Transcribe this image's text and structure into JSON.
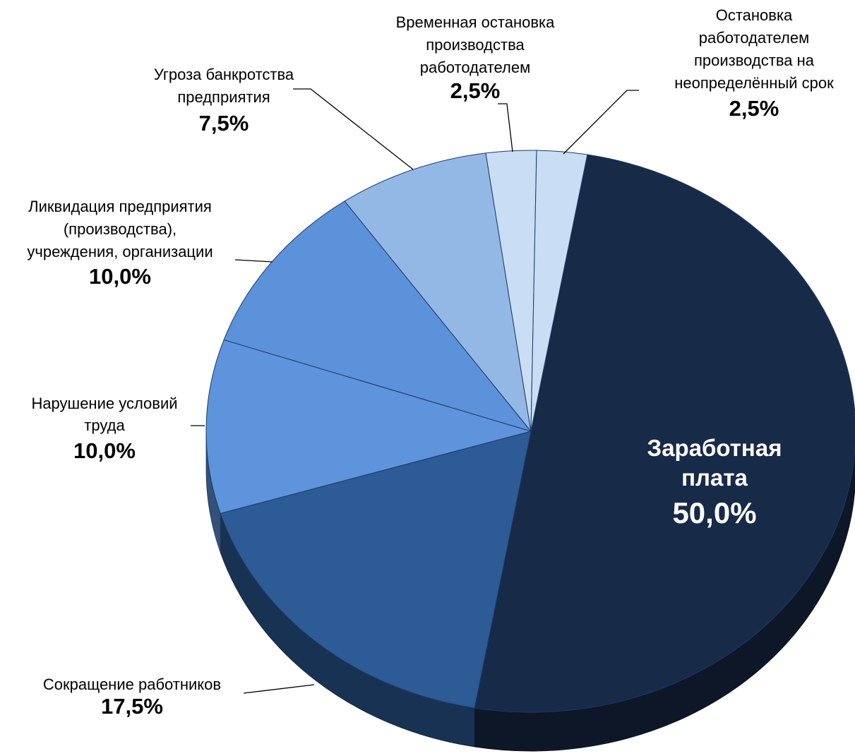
{
  "chart_data": {
    "type": "pie",
    "categories": [
      "Заработная\nплата",
      "Сокращение работников",
      "Нарушение условий\nтруда",
      "Ликвидация предприятия\n(производства),\nучреждения, организации",
      "Угроза банкротства\nпредприятия",
      "Временная остановка\nпроизводства\nработодателем",
      "Остановка\nработодателем\nпроизводства на\nнеопределённый срок"
    ],
    "values": [
      50,
      17.5,
      10,
      10,
      7.5,
      2.5,
      2.5
    ],
    "value_labels": [
      "50,0%",
      "17,5%",
      "10,0%",
      "10,0%",
      "7,5%",
      "2,5%",
      "2,5%"
    ],
    "colors": [
      "#172a48",
      "#2c5b96",
      "#5e94dc",
      "#5b92da",
      "#94b8e6",
      "#c9ddf4",
      "#c9ddf4"
    ]
  }
}
